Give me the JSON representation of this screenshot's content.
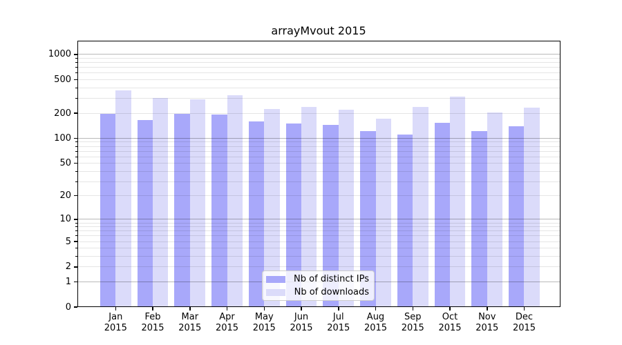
{
  "chart_data": {
    "type": "bar",
    "title": "arrayMvout 2015",
    "categories": [
      "Jan",
      "Feb",
      "Mar",
      "Apr",
      "May",
      "Jun",
      "Jul",
      "Aug",
      "Sep",
      "Oct",
      "Nov",
      "Dec"
    ],
    "x_tick_year": "2015",
    "series": [
      {
        "name": "Nb of distinct IPs",
        "color": "#a8a8fa",
        "values": [
          197,
          165,
          198,
          192,
          158,
          151,
          146,
          121,
          110,
          152,
          123,
          140
        ]
      },
      {
        "name": "Nb of downloads",
        "color": "#dbdbfa",
        "values": [
          374,
          302,
          291,
          327,
          226,
          237,
          221,
          172,
          238,
          316,
          204,
          234
        ]
      }
    ],
    "y_axis": {
      "scale": "log1p",
      "tick_values": [
        0,
        1,
        2,
        5,
        10,
        20,
        50,
        100,
        200,
        500,
        1000
      ],
      "tick_labels": [
        "0",
        "1",
        "2",
        "5",
        "10",
        "20",
        "50",
        "100",
        "200",
        "500",
        "1000"
      ],
      "minor_tick_values": [
        3,
        4,
        6,
        7,
        8,
        9,
        30,
        40,
        60,
        70,
        80,
        90,
        300,
        400,
        600,
        700,
        800,
        900
      ],
      "major_grid_values": [
        1,
        10,
        100,
        1000
      ],
      "ylim": [
        0,
        1460
      ],
      "grid": "both"
    },
    "legend": {
      "entries": [
        "Nb of distinct IPs",
        "Nb of downloads"
      ],
      "position": "lower center-right"
    }
  },
  "colors": {
    "bar_distinct_ips": "#a8a8fa",
    "bar_downloads": "#dbdbfa",
    "grid_major": "rgba(0,0,0,0.28)",
    "grid_minor": "rgba(0,0,0,0.10)",
    "axis": "#000000",
    "legend_border": "#cccccc"
  }
}
